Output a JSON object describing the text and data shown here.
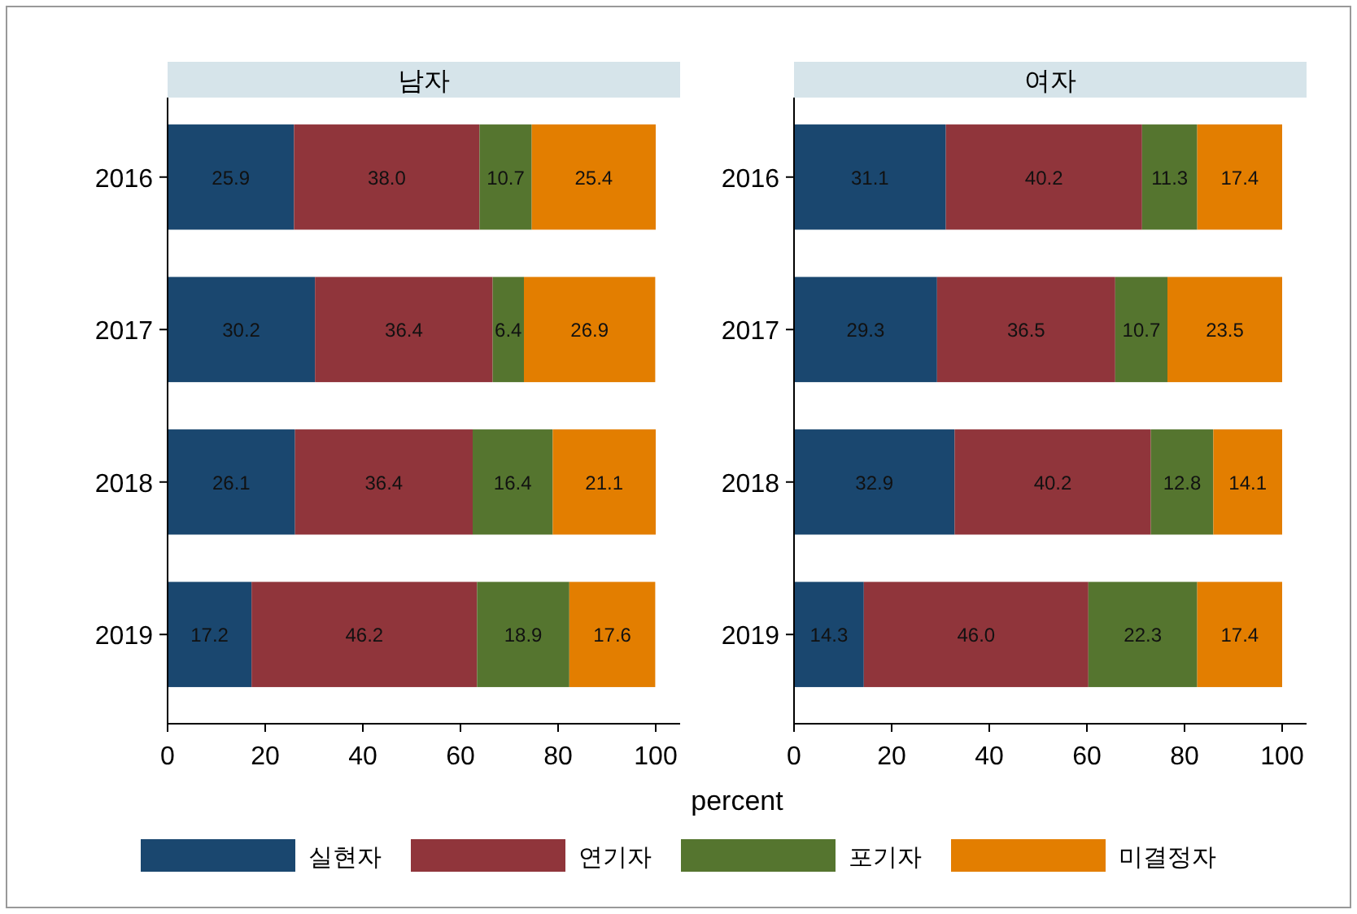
{
  "chart_data": [
    {
      "type": "bar",
      "orientation": "horizontal",
      "stacked": true,
      "title": "남자",
      "xlabel": "percent",
      "categories": [
        "2016",
        "2017",
        "2018",
        "2019"
      ],
      "xlim": [
        0,
        105
      ],
      "xticks": [
        0,
        20,
        40,
        60,
        80,
        100
      ],
      "legend": "bottom",
      "series": [
        {
          "name": "실현자",
          "color": "#1a476f",
          "values": [
            25.9,
            30.2,
            26.1,
            17.2
          ],
          "value_labels": [
            "25.9",
            "30.2",
            "26.1",
            "17.2"
          ]
        },
        {
          "name": "연기자",
          "color": "#90353b",
          "values": [
            38.0,
            36.4,
            36.4,
            46.2
          ],
          "value_labels": [
            "38.0",
            "36.4",
            "36.4",
            "46.2"
          ]
        },
        {
          "name": "포기자",
          "color": "#55752f",
          "values": [
            10.7,
            6.4,
            16.4,
            18.9
          ],
          "value_labels": [
            "10.7",
            "6.4",
            "16.4",
            "18.9"
          ]
        },
        {
          "name": "미결정자",
          "color": "#e37e00",
          "values": [
            25.4,
            26.9,
            21.1,
            17.6
          ],
          "value_labels": [
            "25.4",
            "26.9",
            "21.1",
            "17.6"
          ]
        }
      ]
    },
    {
      "type": "bar",
      "orientation": "horizontal",
      "stacked": true,
      "title": "여자",
      "categories": [
        "2016",
        "2017",
        "2018",
        "2019"
      ],
      "xlim": [
        0,
        105
      ],
      "xticks": [
        0,
        20,
        40,
        60,
        80,
        100
      ],
      "series": [
        {
          "color": "#1a476f",
          "values": [
            31.1,
            29.3,
            32.9,
            14.3
          ],
          "value_labels": [
            "31.1",
            "29.3",
            "32.9",
            "14.3"
          ]
        },
        {
          "color": "#90353b",
          "values": [
            40.2,
            36.5,
            40.2,
            46.0
          ],
          "value_labels": [
            "40.2",
            "36.5",
            "40.2",
            "46.0"
          ]
        },
        {
          "color": "#55752f",
          "values": [
            11.3,
            10.7,
            12.8,
            22.3
          ],
          "value_labels": [
            "11.3",
            "10.7",
            "12.8",
            "22.3"
          ]
        },
        {
          "color": "#e37e00",
          "values": [
            17.4,
            23.5,
            14.1,
            17.4
          ],
          "value_labels": [
            "17.4",
            "23.5",
            "14.1",
            "17.4"
          ]
        }
      ]
    }
  ]
}
